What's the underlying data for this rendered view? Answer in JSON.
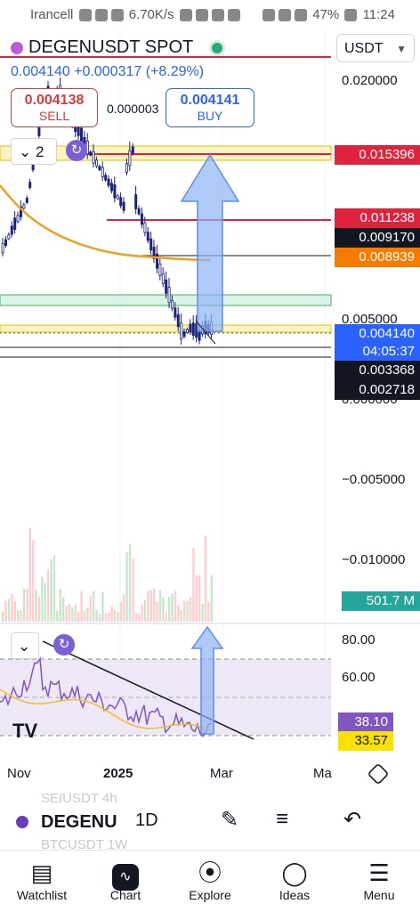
{
  "status_bar": {
    "carrier": "Irancell",
    "net_speed": "6.70K/s",
    "battery": "47%",
    "time": "11:24"
  },
  "header": {
    "symbol": "DEGENUSDT SPOT",
    "last_price": "0.004140",
    "change": "+0.000317 (+8.29%)",
    "sell_price": "0.004138",
    "sell_label": "SELL",
    "spread": "0.000003",
    "buy_price": "0.004141",
    "buy_label": "BUY",
    "currency": "USDT",
    "legend_count": "2"
  },
  "price_axis": {
    "ticks": [
      {
        "label": "0.020000",
        "y": 0.02
      },
      {
        "label": "0.005000",
        "y": 0.005
      },
      {
        "label": "0.000000",
        "y": 0.0
      },
      {
        "label": "−0.005000",
        "y": -0.005
      },
      {
        "label": "−0.010000",
        "y": -0.01
      }
    ],
    "labels": [
      {
        "text": "0.015396",
        "color": "#e0233d"
      },
      {
        "text": "0.011238",
        "color": "#e0233d"
      },
      {
        "text": "0.009170",
        "color": "#131722"
      },
      {
        "text": "0.008939",
        "color": "#f57c00"
      },
      {
        "text": "0.004140",
        "color": "#2962ff"
      },
      {
        "text": "04:05:37",
        "color": "#2962ff"
      },
      {
        "text": "0.003368",
        "color": "#131722"
      },
      {
        "text": "0.002718",
        "color": "#131722"
      }
    ],
    "volume": {
      "text": "501.7 M",
      "color": "#26a69a"
    }
  },
  "rsi_axis": {
    "ticks": [
      "80.00",
      "60.00"
    ],
    "labels": [
      {
        "text": "38.10",
        "color": "#7e57c2"
      },
      {
        "text": "33.57",
        "color": "#f9e100"
      }
    ]
  },
  "time_axis": [
    "Nov",
    "2025",
    "Mar",
    "Ma"
  ],
  "bottom_bar": {
    "ghost_top": "SEIUSDT  4h",
    "symbol": "DEGENU",
    "interval": "1D",
    "ghost_bottom": "BTCUSDT  1W"
  },
  "nav": [
    {
      "label": "Watchlist",
      "icon": "watchlist-icon"
    },
    {
      "label": "Chart",
      "icon": "chart-icon"
    },
    {
      "label": "Explore",
      "icon": "compass-icon"
    },
    {
      "label": "Ideas",
      "icon": "lightbulb-icon"
    },
    {
      "label": "Menu",
      "icon": "menu-icon"
    }
  ]
}
